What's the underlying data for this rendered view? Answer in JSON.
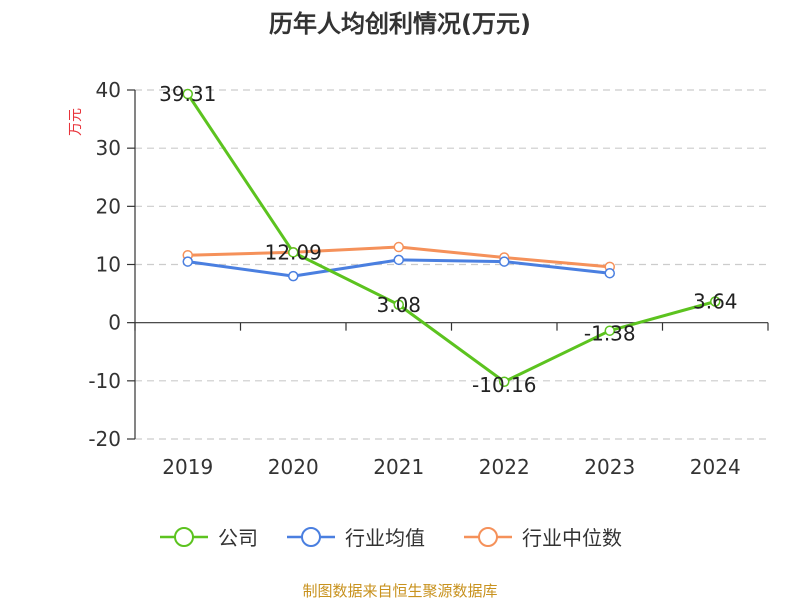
{
  "chart_data": {
    "type": "line",
    "title": "历年人均创利情况(万元)",
    "ylabel": "万元",
    "categories": [
      "2019",
      "2020",
      "2021",
      "2022",
      "2023",
      "2024"
    ],
    "ylim": [
      -20,
      40
    ],
    "yticks": [
      "40",
      "30",
      "20",
      "10",
      "0",
      "-10",
      "-20"
    ],
    "grid": true,
    "legend_position": "bottom",
    "series": [
      {
        "name": "公司",
        "color": "#5cc31f",
        "values": [
          39.31,
          12.09,
          3.08,
          -10.16,
          -1.38,
          3.64
        ],
        "labels": [
          "39.31",
          "12.09",
          "3.08",
          "-10.16",
          "-1.38",
          "3.64"
        ]
      },
      {
        "name": "行业均值",
        "color": "#4a7fe0",
        "values": [
          10.5,
          8.0,
          10.8,
          10.5,
          8.5,
          null
        ]
      },
      {
        "name": "行业中位数",
        "color": "#f5915a",
        "values": [
          11.6,
          12.1,
          13.0,
          11.2,
          9.6,
          null
        ]
      }
    ],
    "source": "制图数据来自恒生聚源数据库",
    "ylabel_color": "#e8333a",
    "source_color": "#c8921e"
  }
}
